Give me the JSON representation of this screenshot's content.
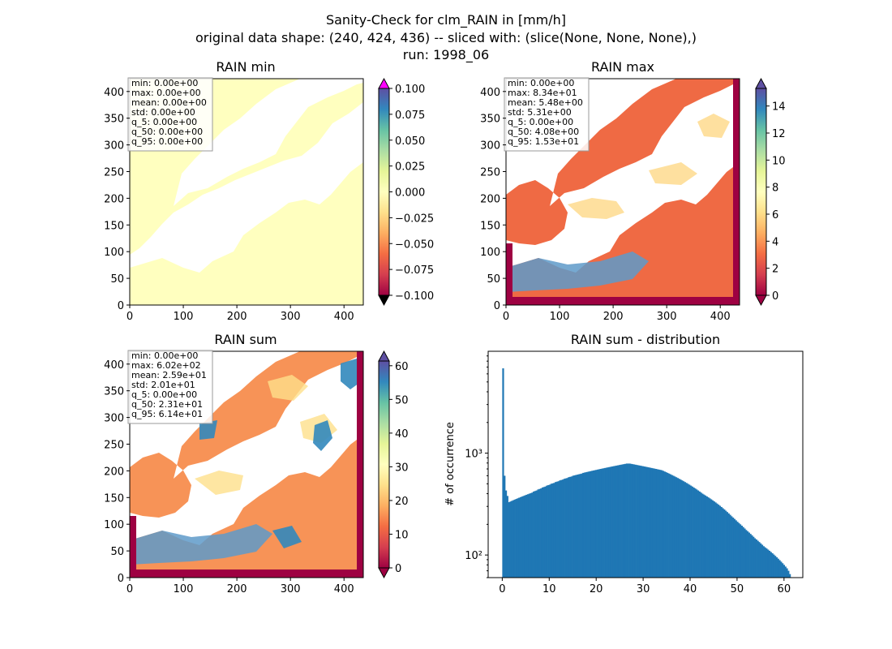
{
  "figure": {
    "title_lines": [
      "Sanity-Check for clm_RAIN in [mm/h]",
      "original data shape: (240, 424, 436) -- sliced with: (slice(None, None, None),)",
      "run: 1998_06"
    ]
  },
  "colormap": [
    "#9e0142",
    "#d53e4f",
    "#f46d43",
    "#fdae61",
    "#fee08b",
    "#ffffbf",
    "#e6f598",
    "#abdda4",
    "#66c2a5",
    "#3288bd",
    "#5e4fa2"
  ],
  "under_color": "#000000",
  "over_color": "#ff00ff",
  "panels": {
    "min": {
      "title": "RAIN min",
      "xticks": [
        0,
        100,
        200,
        300,
        400
      ],
      "yticks": [
        0,
        50,
        100,
        150,
        200,
        250,
        300,
        350,
        400
      ],
      "stats": [
        "min: 0.00e+00",
        "max: 0.00e+00",
        "mean: 0.00e+00",
        "std: 0.00e+00",
        "q_5: 0.00e+00",
        "q_50: 0.00e+00",
        "q_95: 0.00e+00"
      ],
      "colorbar": {
        "range": [
          -0.1,
          0.1
        ],
        "tick_values": [
          -0.1,
          -0.075,
          -0.05,
          -0.025,
          0,
          0.025,
          0.05,
          0.075,
          0.1
        ],
        "tick_labels": [
          "−0.100",
          "−0.075",
          "−0.050",
          "−0.025",
          "0.000",
          "0.025",
          "0.050",
          "0.075",
          "0.100"
        ]
      }
    },
    "max": {
      "title": "RAIN max",
      "xticks": [
        0,
        100,
        200,
        300,
        400
      ],
      "yticks": [
        0,
        50,
        100,
        150,
        200,
        250,
        300,
        350,
        400
      ],
      "stats": [
        "min: 0.00e+00",
        "max: 8.34e+01",
        "mean: 5.48e+00",
        "std: 5.31e+00",
        "q_5: 0.00e+00",
        "q_50: 4.08e+00",
        "q_95: 1.53e+01"
      ],
      "colorbar": {
        "range": [
          0,
          15.3
        ],
        "tick_values": [
          0,
          2,
          4,
          6,
          8,
          10,
          12,
          14
        ],
        "tick_labels": [
          "0",
          "2",
          "4",
          "6",
          "8",
          "10",
          "12",
          "14"
        ]
      }
    },
    "sum": {
      "title": "RAIN sum",
      "xticks": [
        0,
        100,
        200,
        300,
        400
      ],
      "yticks": [
        0,
        50,
        100,
        150,
        200,
        250,
        300,
        350,
        400
      ],
      "stats": [
        "min: 0.00e+00",
        "max: 6.02e+02",
        "mean: 2.59e+01",
        "std: 2.01e+01",
        "q_5: 0.00e+00",
        "q_50: 2.31e+01",
        "q_95: 6.14e+01"
      ],
      "colorbar": {
        "range": [
          0,
          61.4
        ],
        "tick_values": [
          0,
          10,
          20,
          30,
          40,
          50,
          60
        ],
        "tick_labels": [
          "0",
          "10",
          "20",
          "30",
          "40",
          "50",
          "60"
        ]
      }
    }
  },
  "chart_data": {
    "type": "bar",
    "title": "RAIN sum - distribution",
    "xlabel": "",
    "ylabel": "# of occurrence",
    "yscale": "log",
    "xlim": [
      -3,
      64
    ],
    "ylim": [
      60,
      10000
    ],
    "xticks": [
      0,
      10,
      20,
      30,
      40,
      50,
      60
    ],
    "yticks": [
      {
        "value": 100,
        "label": "10²"
      },
      {
        "value": 1000,
        "label": "10³"
      }
    ],
    "bin_width": 0.31,
    "bin_start": 0,
    "values": [
      6800,
      600,
      430,
      380,
      330,
      335,
      340,
      345,
      350,
      355,
      360,
      365,
      370,
      375,
      380,
      385,
      390,
      395,
      400,
      405,
      410,
      420,
      425,
      430,
      440,
      445,
      450,
      460,
      465,
      470,
      480,
      485,
      490,
      500,
      505,
      510,
      520,
      525,
      530,
      540,
      545,
      550,
      560,
      565,
      570,
      580,
      585,
      590,
      600,
      605,
      610,
      615,
      620,
      625,
      630,
      640,
      645,
      650,
      655,
      660,
      665,
      670,
      675,
      680,
      685,
      690,
      695,
      700,
      705,
      710,
      715,
      720,
      725,
      730,
      735,
      740,
      745,
      750,
      755,
      760,
      765,
      770,
      775,
      780,
      785,
      790,
      790,
      790,
      785,
      780,
      775,
      770,
      765,
      760,
      755,
      750,
      745,
      740,
      735,
      730,
      725,
      720,
      715,
      710,
      705,
      700,
      695,
      690,
      685,
      680,
      670,
      660,
      650,
      640,
      630,
      620,
      610,
      600,
      590,
      580,
      570,
      560,
      550,
      540,
      530,
      520,
      510,
      500,
      490,
      480,
      470,
      460,
      450,
      440,
      430,
      420,
      410,
      400,
      392,
      384,
      376,
      368,
      360,
      352,
      344,
      336,
      328,
      320,
      312,
      304,
      296,
      288,
      280,
      272,
      264,
      256,
      248,
      240,
      233,
      226,
      219,
      212,
      206,
      200,
      194,
      188,
      182,
      176,
      171,
      166,
      161,
      156,
      151,
      146,
      142,
      138,
      134,
      130,
      126,
      122,
      119,
      116,
      113,
      110,
      107,
      104,
      101,
      98,
      95,
      92,
      89,
      86,
      83,
      80,
      77,
      74,
      70,
      65
    ]
  }
}
